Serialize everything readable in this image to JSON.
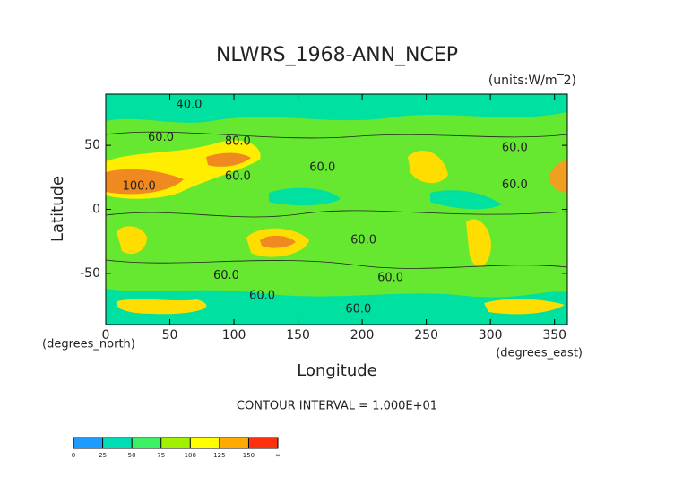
{
  "chart_data": {
    "type": "contour",
    "title": "NLWRS_1968-ANN_NCEP",
    "units": "(units:W/m‾2)",
    "x_label": "Longitude",
    "y_label": "Latitude",
    "x_unit": "(degrees_east)",
    "y_unit": "(degrees_north)",
    "footnote": "CONTOUR INTERVAL = 1.000E+01",
    "xlim": [
      0,
      360
    ],
    "xticks": [
      0,
      50,
      100,
      150,
      200,
      250,
      300,
      350
    ],
    "ylim": [
      -90,
      90
    ],
    "yticks": [
      -50,
      0,
      50
    ],
    "contour_labels": [
      {
        "label": "40.0",
        "x": 65,
        "y": 81.6
      },
      {
        "label": "60.0",
        "x": 43,
        "y": 56
      },
      {
        "label": "80.0",
        "x": 103,
        "y": 53
      },
      {
        "label": "100.0",
        "x": 26,
        "y": 18
      },
      {
        "label": "60.0",
        "x": 103,
        "y": 25.5
      },
      {
        "label": "60.0",
        "x": 169,
        "y": 32.6
      },
      {
        "label": "60.0",
        "x": 319,
        "y": 48
      },
      {
        "label": "60.0",
        "x": 319,
        "y": 19
      },
      {
        "label": "60.0",
        "x": 201,
        "y": -24
      },
      {
        "label": "60.0",
        "x": 222,
        "y": -53.6
      },
      {
        "label": "60.0",
        "x": 94,
        "y": -52
      },
      {
        "label": "60.0",
        "x": 122,
        "y": -67.6
      },
      {
        "label": "60.0",
        "x": 197,
        "y": -78
      }
    ],
    "colorbar": {
      "labels": [
        "0",
        "25",
        "50",
        "75",
        "100",
        "125",
        "150",
        "∞"
      ],
      "colors": [
        "#1e9bff",
        "#00dcb4",
        "#3cf064",
        "#a0f000",
        "#ffff00",
        "#ffaa00",
        "#ff3010"
      ]
    }
  }
}
